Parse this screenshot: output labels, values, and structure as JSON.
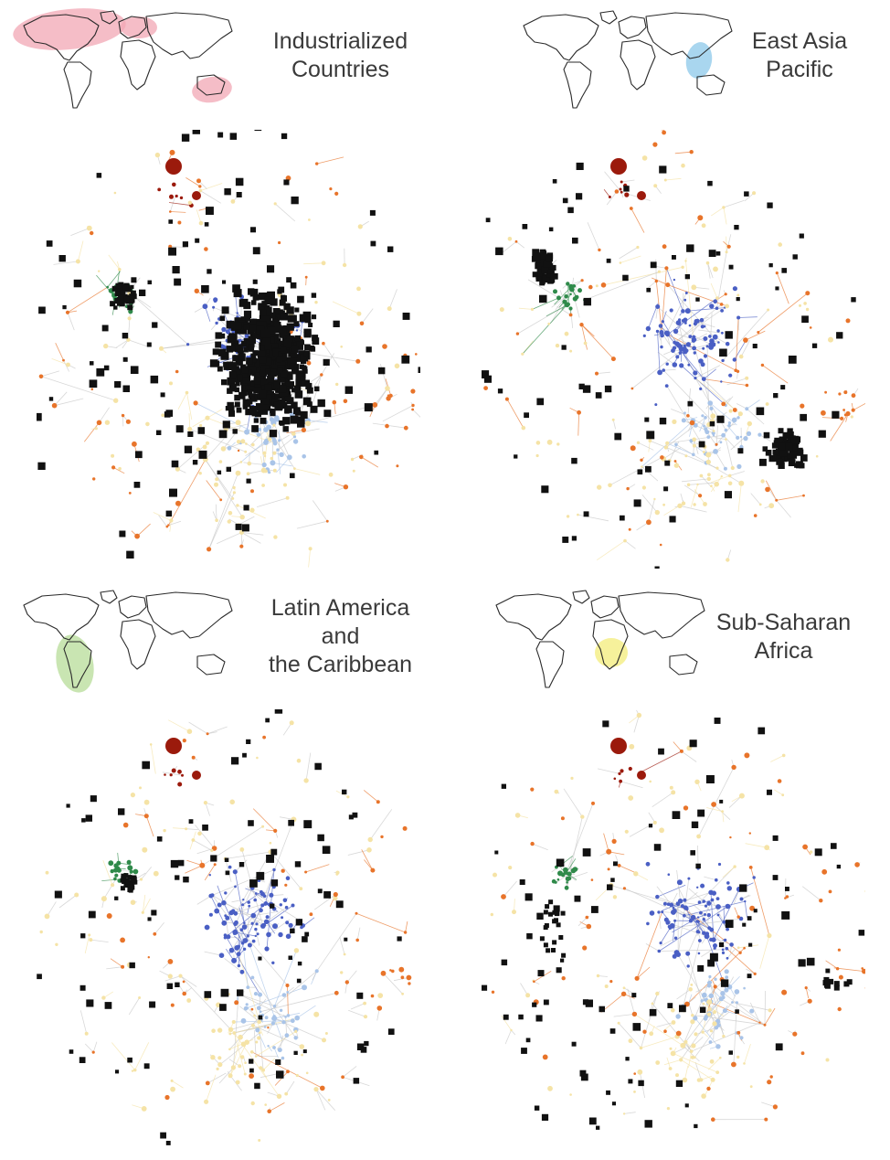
{
  "figure": {
    "panels": [
      {
        "id": "industrialized",
        "title": "Industrialized\nCountries",
        "highlight_color": "#f2a7b4",
        "highlight_region": "industrialized",
        "seed": 11
      },
      {
        "id": "east-asia",
        "title": "East Asia\nPacific",
        "highlight_color": "#8cc8ea",
        "highlight_region": "east-asia-pacific",
        "seed": 23
      },
      {
        "id": "latin-america",
        "title": "Latin America\nand\nthe Caribbean",
        "highlight_color": "#b7dc98",
        "highlight_region": "latin-america",
        "seed": 37
      },
      {
        "id": "africa",
        "title": "Sub-Saharan\nAfrica",
        "highlight_color": "#f3ec7a",
        "highlight_region": "sub-saharan-africa",
        "seed": 53
      }
    ]
  },
  "legend_colors": {
    "product_black": "#111111",
    "cluster_red": "#9b1a0c",
    "cluster_green": "#2f8a4a",
    "cluster_blue": "#4a5fc4",
    "cluster_lightblue": "#a9c4e8",
    "cluster_yellow": "#f5e3a6",
    "cluster_orange": "#e8742a",
    "edge_gray": "#c8c8c8"
  }
}
